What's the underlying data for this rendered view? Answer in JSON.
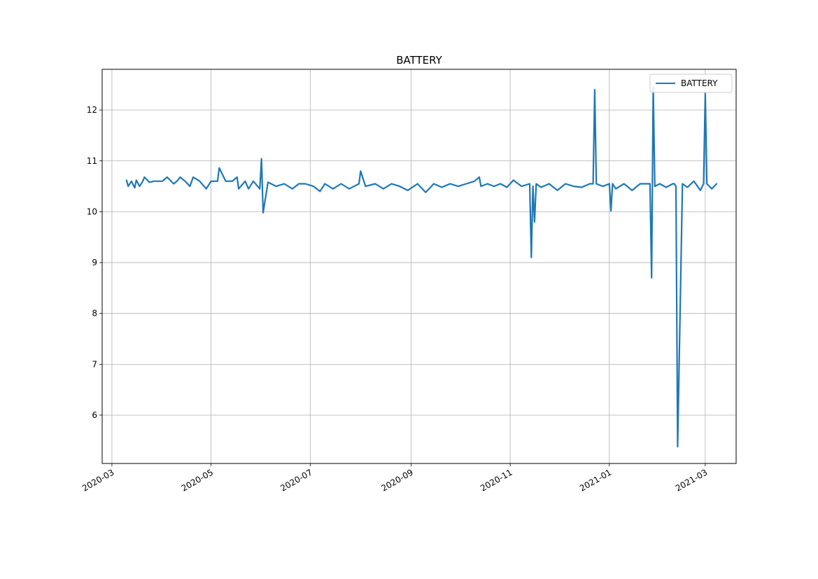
{
  "chart_data": {
    "type": "line",
    "title": "BATTERY",
    "xlabel": "",
    "ylabel": "",
    "x_axis_type": "date",
    "xlim": [
      "2020-02-24",
      "2021-03-20"
    ],
    "ylim": [
      5.05,
      12.8
    ],
    "x_ticks": [
      {
        "date": "2020-03-01",
        "label": "2020-03"
      },
      {
        "date": "2020-05-01",
        "label": "2020-05"
      },
      {
        "date": "2020-07-01",
        "label": "2020-07"
      },
      {
        "date": "2020-09-01",
        "label": "2020-09"
      },
      {
        "date": "2020-11-01",
        "label": "2020-11"
      },
      {
        "date": "2021-01-01",
        "label": "2021-01"
      },
      {
        "date": "2021-03-01",
        "label": "2021-03"
      }
    ],
    "y_ticks": [
      {
        "value": 6,
        "label": "6"
      },
      {
        "value": 7,
        "label": "7"
      },
      {
        "value": 8,
        "label": "8"
      },
      {
        "value": 9,
        "label": "9"
      },
      {
        "value": 10,
        "label": "10"
      },
      {
        "value": 11,
        "label": "11"
      },
      {
        "value": 12,
        "label": "12"
      }
    ],
    "grid": true,
    "legend": {
      "placement": "top-right"
    },
    "series": [
      {
        "name": "BATTERY",
        "color": "#1f77b4",
        "x": [
          "2020-03-10",
          "2020-03-11",
          "2020-03-13",
          "2020-03-15",
          "2020-03-16",
          "2020-03-18",
          "2020-03-20",
          "2020-03-21",
          "2020-03-24",
          "2020-03-27",
          "2020-04-01",
          "2020-04-04",
          "2020-04-08",
          "2020-04-10",
          "2020-04-12",
          "2020-04-15",
          "2020-04-18",
          "2020-04-20",
          "2020-04-24",
          "2020-04-28",
          "2020-05-01",
          "2020-05-05",
          "2020-05-06",
          "2020-05-10",
          "2020-05-14",
          "2020-05-17",
          "2020-05-18",
          "2020-05-22",
          "2020-05-24",
          "2020-05-27",
          "2020-05-31",
          "2020-06-01",
          "2020-06-02",
          "2020-06-05",
          "2020-06-10",
          "2020-06-15",
          "2020-06-20",
          "2020-06-24",
          "2020-06-28",
          "2020-07-03",
          "2020-07-07",
          "2020-07-10",
          "2020-07-15",
          "2020-07-20",
          "2020-07-25",
          "2020-07-31",
          "2020-08-01",
          "2020-08-04",
          "2020-08-10",
          "2020-08-15",
          "2020-08-20",
          "2020-08-25",
          "2020-08-30",
          "2020-09-05",
          "2020-09-10",
          "2020-09-15",
          "2020-09-20",
          "2020-09-25",
          "2020-09-30",
          "2020-10-05",
          "2020-10-10",
          "2020-10-13",
          "2020-10-14",
          "2020-10-18",
          "2020-10-22",
          "2020-10-26",
          "2020-10-30",
          "2020-11-03",
          "2020-11-08",
          "2020-11-13",
          "2020-11-14",
          "2020-11-15",
          "2020-11-16",
          "2020-11-17",
          "2020-11-20",
          "2020-11-25",
          "2020-11-30",
          "2020-12-05",
          "2020-12-10",
          "2020-12-15",
          "2020-12-20",
          "2020-12-22",
          "2020-12-23",
          "2020-12-24",
          "2020-12-28",
          "2021-01-01",
          "2021-01-02",
          "2021-01-03",
          "2021-01-05",
          "2021-01-10",
          "2021-01-15",
          "2021-01-20",
          "2021-01-26",
          "2021-01-27",
          "2021-01-28",
          "2021-01-29",
          "2021-02-01",
          "2021-02-05",
          "2021-02-09",
          "2021-02-10",
          "2021-02-11",
          "2021-02-12",
          "2021-02-15",
          "2021-02-18",
          "2021-02-22",
          "2021-02-26",
          "2021-02-28",
          "2021-03-01",
          "2021-03-02",
          "2021-03-05",
          "2021-03-08"
        ],
        "values": [
          10.62,
          10.5,
          10.6,
          10.47,
          10.62,
          10.5,
          10.6,
          10.68,
          10.58,
          10.6,
          10.6,
          10.68,
          10.55,
          10.6,
          10.68,
          10.6,
          10.5,
          10.68,
          10.6,
          10.45,
          10.6,
          10.6,
          10.86,
          10.6,
          10.6,
          10.68,
          10.45,
          10.6,
          10.45,
          10.6,
          10.45,
          11.04,
          9.98,
          10.58,
          10.5,
          10.55,
          10.45,
          10.55,
          10.55,
          10.5,
          10.4,
          10.55,
          10.45,
          10.55,
          10.45,
          10.55,
          10.8,
          10.5,
          10.55,
          10.45,
          10.55,
          10.5,
          10.42,
          10.55,
          10.38,
          10.55,
          10.48,
          10.55,
          10.5,
          10.55,
          10.6,
          10.68,
          10.5,
          10.55,
          10.5,
          10.55,
          10.48,
          10.62,
          10.5,
          10.55,
          9.1,
          10.5,
          9.8,
          10.55,
          10.48,
          10.55,
          10.42,
          10.55,
          10.5,
          10.48,
          10.55,
          10.55,
          12.4,
          10.55,
          10.5,
          10.55,
          10.02,
          10.55,
          10.45,
          10.55,
          10.42,
          10.55,
          10.55,
          8.7,
          12.45,
          10.5,
          10.55,
          10.48,
          10.55,
          10.55,
          10.5,
          5.38,
          10.55,
          10.48,
          10.6,
          10.42,
          10.55,
          12.33,
          10.55,
          10.45,
          10.55
        ]
      }
    ]
  }
}
